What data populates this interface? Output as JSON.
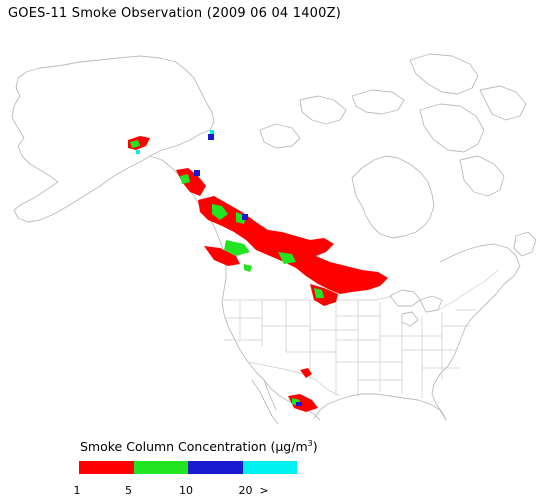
{
  "title": "GOES-11 Smoke Observation (2009 06 04  1400Z)",
  "legend": {
    "title_prefix": "Smoke Column Concentration (",
    "title_mu": "μg/m",
    "title_sup": "3",
    "title_suffix": ")",
    "bins": [
      {
        "color": "#ff0000"
      },
      {
        "color": "#22e522"
      },
      {
        "color": "#1a1acf"
      },
      {
        "color": "#00f0f0"
      }
    ],
    "ticks": [
      "1",
      "5",
      "10",
      "20",
      ">"
    ]
  },
  "colors": {
    "coastline": "#bbbbbb",
    "borders": "#cccccc",
    "smoke_low": "#ff0000",
    "smoke_mid": "#22e522",
    "smoke_high": "#1a1acf",
    "smoke_max": "#00f0f0"
  }
}
